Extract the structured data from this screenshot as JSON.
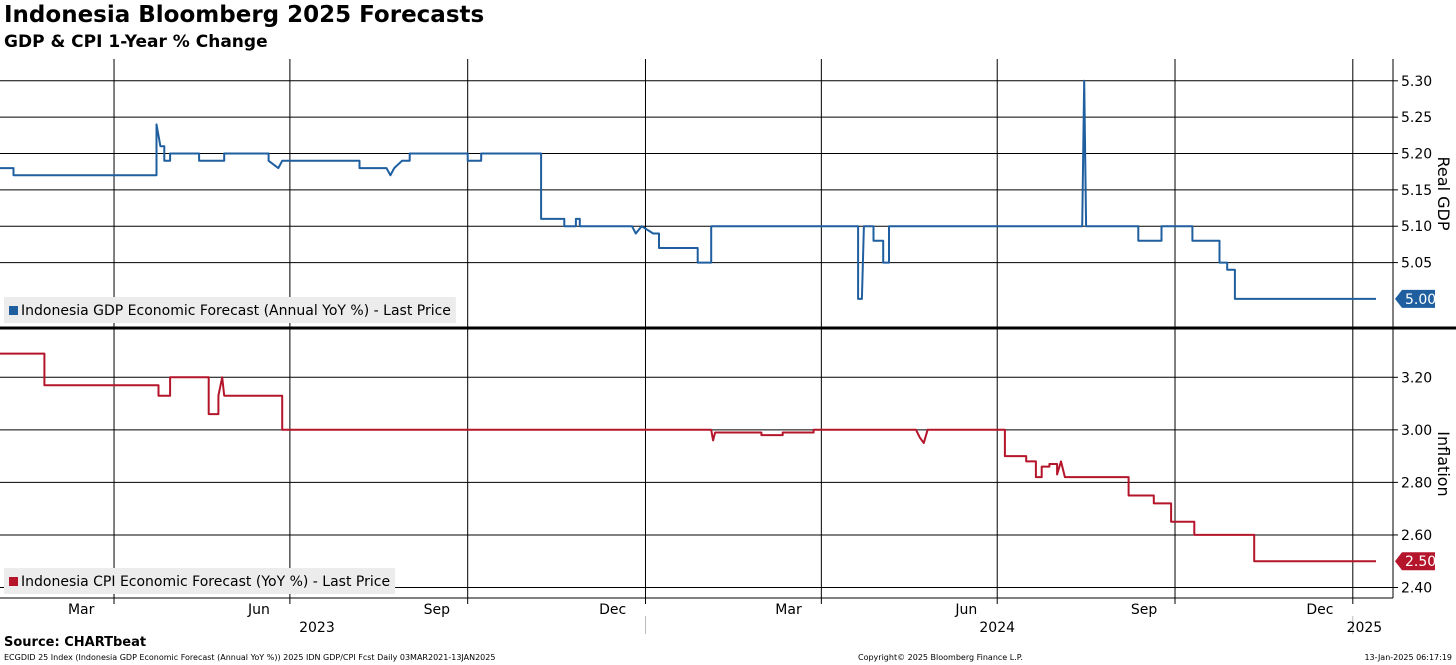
{
  "chart_data": [
    {
      "type": "line",
      "panel": "top",
      "title": "Indonesia Bloomberg 2025 Forecasts",
      "subtitle": "GDP & CPI 1-Year % Change",
      "ylabel": "Real GDP",
      "ylim": [
        4.96,
        5.33
      ],
      "yticks": [
        5.05,
        5.1,
        5.15,
        5.2,
        5.25,
        5.3
      ],
      "ytick_labels": [
        "5.05",
        "5.10",
        "5.15",
        "5.20",
        "5.25",
        "5.30"
      ],
      "series": [
        {
          "name": "Indonesia GDP Economic Forecast (Annual YoY %) - Last Price",
          "color": "#1f5fa0",
          "last_value": 5.0,
          "last_label": "5.00",
          "points": [
            [
              "2023-02-01",
              5.18
            ],
            [
              "2023-02-08",
              5.18
            ],
            [
              "2023-02-08",
              5.17
            ],
            [
              "2023-04-23",
              5.17
            ],
            [
              "2023-04-23",
              5.24
            ],
            [
              "2023-04-25",
              5.21
            ],
            [
              "2023-04-27",
              5.21
            ],
            [
              "2023-04-27",
              5.19
            ],
            [
              "2023-04-30",
              5.19
            ],
            [
              "2023-04-30",
              5.2
            ],
            [
              "2023-05-15",
              5.2
            ],
            [
              "2023-05-15",
              5.19
            ],
            [
              "2023-05-28",
              5.19
            ],
            [
              "2023-05-28",
              5.2
            ],
            [
              "2023-06-20",
              5.2
            ],
            [
              "2023-06-20",
              5.19
            ],
            [
              "2023-06-25",
              5.18
            ],
            [
              "2023-06-27",
              5.19
            ],
            [
              "2023-08-06",
              5.19
            ],
            [
              "2023-08-06",
              5.18
            ],
            [
              "2023-08-20",
              5.18
            ],
            [
              "2023-08-22",
              5.17
            ],
            [
              "2023-08-24",
              5.18
            ],
            [
              "2023-08-28",
              5.19
            ],
            [
              "2023-09-01",
              5.19
            ],
            [
              "2023-09-01",
              5.2
            ],
            [
              "2023-10-01",
              5.2
            ],
            [
              "2023-10-01",
              5.19
            ],
            [
              "2023-10-08",
              5.19
            ],
            [
              "2023-10-08",
              5.2
            ],
            [
              "2023-11-08",
              5.2
            ],
            [
              "2023-11-08",
              5.11
            ],
            [
              "2023-11-20",
              5.11
            ],
            [
              "2023-11-20",
              5.1
            ],
            [
              "2023-11-26",
              5.1
            ],
            [
              "2023-11-26",
              5.11
            ],
            [
              "2023-11-28",
              5.11
            ],
            [
              "2023-11-28",
              5.1
            ],
            [
              "2023-12-25",
              5.1
            ],
            [
              "2023-12-27",
              5.09
            ],
            [
              "2023-12-30",
              5.1
            ],
            [
              "2024-01-05",
              5.09
            ],
            [
              "2024-01-08",
              5.09
            ],
            [
              "2024-01-08",
              5.07
            ],
            [
              "2024-01-28",
              5.07
            ],
            [
              "2024-01-28",
              5.05
            ],
            [
              "2024-02-04",
              5.05
            ],
            [
              "2024-02-04",
              5.1
            ],
            [
              "2024-04-20",
              5.1
            ],
            [
              "2024-04-20",
              5.0
            ],
            [
              "2024-04-22",
              5.0
            ],
            [
              "2024-04-23",
              5.1
            ],
            [
              "2024-04-28",
              5.1
            ],
            [
              "2024-04-28",
              5.08
            ],
            [
              "2024-05-03",
              5.08
            ],
            [
              "2024-05-03",
              5.05
            ],
            [
              "2024-05-06",
              5.05
            ],
            [
              "2024-05-06",
              5.1
            ],
            [
              "2024-08-14",
              5.1
            ],
            [
              "2024-08-15",
              5.3
            ],
            [
              "2024-08-16",
              5.1
            ],
            [
              "2024-09-12",
              5.1
            ],
            [
              "2024-09-12",
              5.08
            ],
            [
              "2024-09-24",
              5.08
            ],
            [
              "2024-09-24",
              5.1
            ],
            [
              "2024-10-10",
              5.1
            ],
            [
              "2024-10-10",
              5.08
            ],
            [
              "2024-10-24",
              5.08
            ],
            [
              "2024-10-24",
              5.05
            ],
            [
              "2024-10-28",
              5.05
            ],
            [
              "2024-10-28",
              5.04
            ],
            [
              "2024-11-01",
              5.04
            ],
            [
              "2024-11-01",
              5.0
            ],
            [
              "2025-01-13",
              5.0
            ]
          ]
        }
      ]
    },
    {
      "type": "line",
      "panel": "bottom",
      "ylabel": "Inflation",
      "ylim": [
        2.36,
        3.38
      ],
      "yticks": [
        2.4,
        2.6,
        2.8,
        3.0,
        3.2
      ],
      "ytick_labels": [
        "2.40",
        "2.60",
        "2.80",
        "3.00",
        "3.20"
      ],
      "series": [
        {
          "name": "Indonesia CPI Economic Forecast (YoY %) - Last Price",
          "color": "#b5152b",
          "last_value": 2.5,
          "last_label": "2.50",
          "points": [
            [
              "2023-02-01",
              3.29
            ],
            [
              "2023-02-24",
              3.29
            ],
            [
              "2023-02-24",
              3.17
            ],
            [
              "2023-04-24",
              3.17
            ],
            [
              "2023-04-24",
              3.13
            ],
            [
              "2023-04-30",
              3.13
            ],
            [
              "2023-04-30",
              3.2
            ],
            [
              "2023-05-20",
              3.2
            ],
            [
              "2023-05-20",
              3.06
            ],
            [
              "2023-05-25",
              3.06
            ],
            [
              "2023-05-25",
              3.13
            ],
            [
              "2023-05-27",
              3.2
            ],
            [
              "2023-05-28",
              3.13
            ],
            [
              "2023-06-27",
              3.13
            ],
            [
              "2023-06-27",
              3.0
            ],
            [
              "2024-02-04",
              3.0
            ],
            [
              "2024-02-05",
              2.96
            ],
            [
              "2024-02-06",
              2.99
            ],
            [
              "2024-03-01",
              2.99
            ],
            [
              "2024-03-01",
              2.98
            ],
            [
              "2024-03-12",
              2.98
            ],
            [
              "2024-03-12",
              2.99
            ],
            [
              "2024-03-28",
              2.99
            ],
            [
              "2024-03-28",
              3.0
            ],
            [
              "2024-05-20",
              3.0
            ],
            [
              "2024-05-22",
              2.97
            ],
            [
              "2024-05-24",
              2.95
            ],
            [
              "2024-05-26",
              3.0
            ],
            [
              "2024-07-05",
              3.0
            ],
            [
              "2024-07-05",
              2.9
            ],
            [
              "2024-07-16",
              2.9
            ],
            [
              "2024-07-16",
              2.88
            ],
            [
              "2024-07-21",
              2.88
            ],
            [
              "2024-07-21",
              2.82
            ],
            [
              "2024-07-24",
              2.82
            ],
            [
              "2024-07-24",
              2.86
            ],
            [
              "2024-07-28",
              2.86
            ],
            [
              "2024-07-28",
              2.87
            ],
            [
              "2024-08-01",
              2.87
            ],
            [
              "2024-08-01",
              2.83
            ],
            [
              "2024-08-03",
              2.88
            ],
            [
              "2024-08-05",
              2.82
            ],
            [
              "2024-09-07",
              2.82
            ],
            [
              "2024-09-07",
              2.75
            ],
            [
              "2024-09-20",
              2.75
            ],
            [
              "2024-09-20",
              2.72
            ],
            [
              "2024-09-29",
              2.72
            ],
            [
              "2024-09-29",
              2.65
            ],
            [
              "2024-10-11",
              2.65
            ],
            [
              "2024-10-11",
              2.6
            ],
            [
              "2024-11-11",
              2.6
            ],
            [
              "2024-11-11",
              2.5
            ],
            [
              "2025-01-13",
              2.5
            ]
          ]
        }
      ]
    }
  ],
  "x_axis": {
    "start": "2023-02-01",
    "end": "2025-01-13",
    "month_labels": [
      {
        "date": "2023-03-15",
        "label": "Mar"
      },
      {
        "date": "2023-06-15",
        "label": "Jun"
      },
      {
        "date": "2023-09-15",
        "label": "Sep"
      },
      {
        "date": "2023-12-15",
        "label": "Dec"
      },
      {
        "date": "2024-03-15",
        "label": "Mar"
      },
      {
        "date": "2024-06-15",
        "label": "Jun"
      },
      {
        "date": "2024-09-15",
        "label": "Sep"
      },
      {
        "date": "2024-12-15",
        "label": "Dec"
      }
    ],
    "gridlines": [
      "2023-04-01",
      "2023-07-01",
      "2023-10-01",
      "2024-01-01",
      "2024-04-01",
      "2024-07-01",
      "2024-10-01",
      "2025-01-01"
    ],
    "year_labels": [
      {
        "date": "2023-07-15",
        "label": "2023"
      },
      {
        "date": "2024-07-01",
        "label": "2024"
      },
      {
        "date": "2025-01-07",
        "label": "2025"
      }
    ],
    "year_boundaries": [
      "2024-01-01",
      "2025-01-01"
    ]
  },
  "colors": {
    "gdp": "#1f5fa0",
    "cpi": "#b5152b",
    "grid": "#000000",
    "legend_bg": "#ececec"
  },
  "header": {
    "title": "Indonesia Bloomberg 2025 Forecasts",
    "subtitle": "GDP & CPI 1-Year % Change"
  },
  "footer": {
    "source": "Source: CHARTbeat",
    "left": "ECGDID 25 Index (Indonesia GDP Economic Forecast (Annual YoY %)) 2025 IDN GDP/CPI Fcst  Daily 03MAR2021-13JAN2025",
    "center": "Copyright© 2025 Bloomberg Finance L.P.",
    "right": "13-Jan-2025 06:17:19"
  }
}
